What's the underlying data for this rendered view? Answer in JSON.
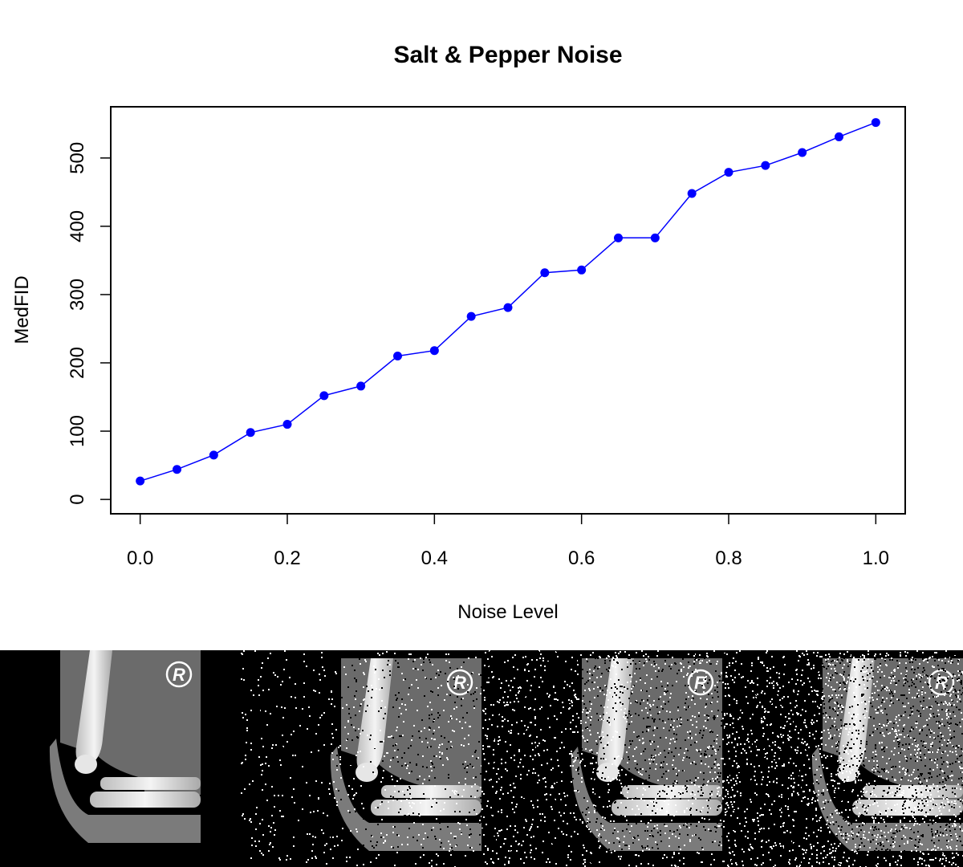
{
  "chart_data": {
    "type": "line",
    "title": "Salt & Pepper Noise",
    "xlabel": "Noise Level",
    "ylabel": "MedFID",
    "x_ticks": [
      "0.0",
      "0.2",
      "0.4",
      "0.6",
      "0.8",
      "1.0"
    ],
    "y_ticks": [
      "0",
      "100",
      "200",
      "300",
      "400",
      "500"
    ],
    "xlim": [
      -0.04,
      1.04
    ],
    "ylim": [
      -21,
      575
    ],
    "grid": false,
    "legend": "none",
    "series": [
      {
        "color": "#0000ff",
        "marker": "filled-circle",
        "points": [
          {
            "x": 0.0,
            "y": 27
          },
          {
            "x": 0.05,
            "y": 44
          },
          {
            "x": 0.1,
            "y": 65
          },
          {
            "x": 0.15,
            "y": 98
          },
          {
            "x": 0.2,
            "y": 110
          },
          {
            "x": 0.25,
            "y": 152
          },
          {
            "x": 0.3,
            "y": 166
          },
          {
            "x": 0.35,
            "y": 210
          },
          {
            "x": 0.4,
            "y": 218
          },
          {
            "x": 0.45,
            "y": 268
          },
          {
            "x": 0.5,
            "y": 281
          },
          {
            "x": 0.55,
            "y": 332
          },
          {
            "x": 0.6,
            "y": 336
          },
          {
            "x": 0.65,
            "y": 383
          },
          {
            "x": 0.7,
            "y": 383
          },
          {
            "x": 0.75,
            "y": 448
          },
          {
            "x": 0.8,
            "y": 479
          },
          {
            "x": 0.85,
            "y": 489
          },
          {
            "x": 0.9,
            "y": 508
          },
          {
            "x": 0.95,
            "y": 531
          },
          {
            "x": 1.0,
            "y": 552
          }
        ]
      }
    ]
  },
  "xray_strip": {
    "marker_letter": "R",
    "panels": [
      {
        "noise_level": 0.0
      },
      {
        "noise_level": 0.3
      },
      {
        "noise_level": 0.6
      },
      {
        "noise_level": 0.9
      }
    ]
  },
  "colors": {
    "series": "#0000ff",
    "axis": "#000000",
    "background": "#ffffff",
    "xray_background": "#000000"
  }
}
